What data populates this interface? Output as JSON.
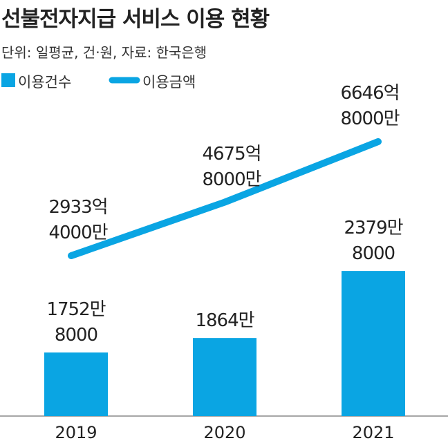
{
  "chart_data": {
    "type": "bar+line",
    "title": "선불전자지급 서비스 이용 현황",
    "subtitle": "단위: 일평균, 건·원, 자료: 한국은행",
    "categories": [
      "2019",
      "2020",
      "2021"
    ],
    "series": [
      {
        "name": "이용건수",
        "type": "bar",
        "color": "#0aa5e3",
        "values": [
          17528000,
          18640000,
          23798000
        ],
        "value_labels": [
          "1752만\n8000",
          "1864만",
          "2379만\n8000"
        ]
      },
      {
        "name": "이용금액",
        "type": "line",
        "axis": "y2",
        "color": "#0aa5e3",
        "values": [
          293340000000,
          467580000000,
          664680000000
        ],
        "value_labels": [
          "2933억\n4000만",
          "4675억\n8000만",
          "6646억\n8000만"
        ]
      }
    ],
    "ylim": [
      12640000,
      37200000
    ],
    "y2lim": [
      -228600000000,
      810800000000
    ]
  }
}
